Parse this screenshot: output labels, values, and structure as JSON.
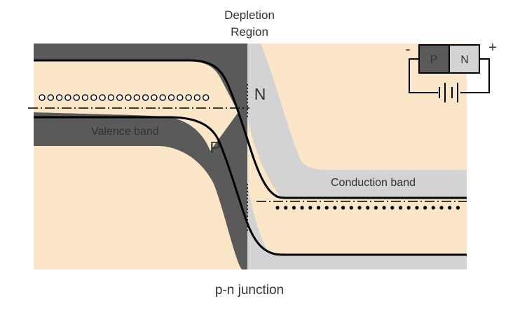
{
  "title_lines": [
    "Depletion",
    "Region"
  ],
  "caption": "p-n junction",
  "labels": {
    "n_region": "N",
    "p_region": "P",
    "valence_band": "Valence band",
    "conduction_band": "Conduction band"
  },
  "diode_inset": {
    "p_label": "P",
    "n_label": "N",
    "minus_sign": "-",
    "plus_sign": "+"
  },
  "colors": {
    "beige": "#fbe6c7",
    "dark_gray": "#5a5a5a",
    "light_gray": "#d3d3d3",
    "band_edge": "#000000",
    "text": "#333333"
  }
}
